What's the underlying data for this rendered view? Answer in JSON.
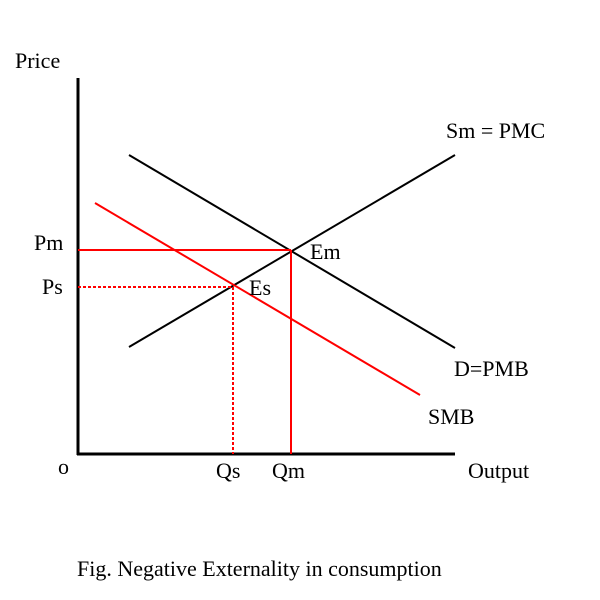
{
  "labels": {
    "y_axis": "Price",
    "x_axis": "Output",
    "origin": "o",
    "pm": "Pm",
    "ps": "Ps",
    "qs": "Qs",
    "qm": "Qm",
    "em": "Em",
    "es": "Es",
    "supply": "Sm = PMC",
    "demand": "D=PMB",
    "smb": "SMB"
  },
  "caption": "Fig. Negative Externality in consumption",
  "colors": {
    "axis": "#000000",
    "curve": "#000000",
    "social": "#ff0000"
  }
}
